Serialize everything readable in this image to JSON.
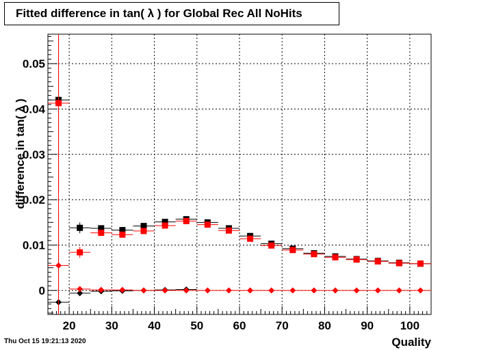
{
  "footer": {
    "timestamp": "Thu Oct 15 19:21:13 2020"
  },
  "chart_data": {
    "type": "scatter",
    "title": "Fitted difference in tan( λ ) for Global Rec All NoHits",
    "xlabel": "Quality",
    "ylabel": "difference in tan( λ )",
    "xlim": [
      15,
      105
    ],
    "ylim": [
      -0.0053,
      0.0565
    ],
    "x_ticks": [
      20,
      30,
      40,
      50,
      60,
      70,
      80,
      90,
      100
    ],
    "x_tick_labels": [
      "20",
      "30",
      "40",
      "50",
      "60",
      "70",
      "80",
      "90",
      "100"
    ],
    "y_ticks": [
      0,
      0.01,
      0.02,
      0.03,
      0.04,
      0.05
    ],
    "y_tick_labels": [
      "0",
      "0.01",
      "0.02",
      "0.03",
      "0.04",
      "0.05"
    ],
    "grid": true,
    "bin_width": 5,
    "colors": {
      "black": "#000000",
      "red": "#ff0000"
    },
    "series": [
      {
        "color": "#000000",
        "marker": "square",
        "x": [
          17.5,
          22.5,
          27.5,
          32.5,
          37.5,
          42.5,
          47.5,
          52.5,
          57.5,
          62.5,
          67.5,
          72.5,
          77.5,
          82.5,
          87.5,
          92.5,
          97.5,
          102.5
        ],
        "y": [
          0.042,
          0.0138,
          0.0137,
          0.0133,
          0.0142,
          0.0151,
          0.0157,
          0.015,
          0.0137,
          0.012,
          0.0103,
          0.0092,
          0.0082,
          0.0075,
          0.0069,
          0.0065,
          0.0061,
          0.0059
        ],
        "err": [
          0.02,
          0.0012,
          0.0005,
          0.0005,
          0.0005,
          0.0005,
          0.0005,
          0.0004,
          0.0004,
          0.0004,
          0.0004,
          0.0003,
          0.0003,
          0.0003,
          0.0003,
          0.0003,
          0.0003,
          0.0003
        ]
      },
      {
        "color": "#ff0000",
        "marker": "square",
        "x": [
          17.5,
          22.5,
          27.5,
          32.5,
          37.5,
          42.5,
          47.5,
          52.5,
          57.5,
          62.5,
          67.5,
          72.5,
          77.5,
          82.5,
          87.5,
          92.5,
          97.5,
          102.5
        ],
        "y": [
          0.0413,
          0.0084,
          0.0127,
          0.0123,
          0.0131,
          0.0143,
          0.0153,
          0.0145,
          0.0132,
          0.0114,
          0.0099,
          0.0089,
          0.008,
          0.0073,
          0.0068,
          0.0064,
          0.006,
          0.0059
        ],
        "err": [
          0.02,
          0.0012,
          0.0005,
          0.0005,
          0.0005,
          0.0005,
          0.0005,
          0.0004,
          0.0004,
          0.0004,
          0.0004,
          0.0003,
          0.0003,
          0.0003,
          0.0003,
          0.0003,
          0.0003,
          0.0003
        ]
      },
      {
        "color": "#000000",
        "marker": "diamond",
        "x": [
          17.5,
          22.5,
          27.5,
          32.5,
          37.5,
          42.5,
          47.5
        ],
        "y": [
          -0.0026,
          -0.0006,
          -0.0002,
          -0.0001,
          0.0,
          0.0001,
          0.0002
        ],
        "err": [
          0.02,
          0.0003,
          0.0002,
          0.0002,
          0.0001,
          0.0001,
          0.0001
        ]
      },
      {
        "color": "#ff0000",
        "marker": "diamond",
        "x": [
          17.5,
          22.5,
          27.5,
          32.5,
          37.5,
          42.5,
          47.5,
          52.5,
          57.5,
          62.5,
          67.5,
          72.5,
          77.5,
          82.5,
          87.5,
          92.5,
          97.5,
          102.5
        ],
        "y": [
          0.0055,
          0.0003,
          0.0001,
          0.0001,
          0.0,
          0.0,
          0.0,
          0.0,
          0.0,
          0.0,
          0.0,
          0.0,
          0.0,
          0.0,
          0.0,
          0.0,
          0.0,
          0.0
        ],
        "err": [
          0.02,
          0.0002,
          0.0001,
          0.0001,
          0.0001,
          0.0001,
          0.0001,
          0.0001,
          0.0001,
          0.0001,
          0.0001,
          0.0001,
          0.0001,
          0.0001,
          0.0001,
          0.0001,
          0.0001,
          0.0001
        ]
      }
    ]
  }
}
